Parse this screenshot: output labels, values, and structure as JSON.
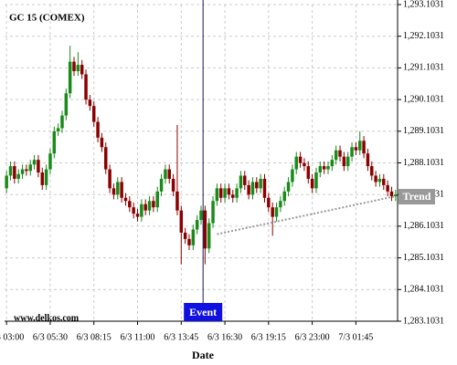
{
  "chart_data": {
    "type": "candlestick",
    "title": "GC 15 (COMEX)",
    "x_label": "Date",
    "watermark": "www.delkos.com",
    "up_color": "#1a8a1a",
    "down_color": "#8b0000",
    "grid": true,
    "ylim": [
      1283.1031,
      1293.1031
    ],
    "yticks": [
      {
        "value": 1283.1031,
        "label": "1,283.1031"
      },
      {
        "value": 1284.1031,
        "label": "1,284.1031"
      },
      {
        "value": 1285.1031,
        "label": "1,285.1031"
      },
      {
        "value": 1286.1031,
        "label": "1,286.1031"
      },
      {
        "value": 1287.1031,
        "label": "1,287.1031"
      },
      {
        "value": 1288.1031,
        "label": "1,288.1031"
      },
      {
        "value": 1289.1031,
        "label": "1,289.1031"
      },
      {
        "value": 1290.1031,
        "label": "1,290.1031"
      },
      {
        "value": 1291.1031,
        "label": "1,291.1031"
      },
      {
        "value": 1292.1031,
        "label": "1,292.1031"
      },
      {
        "value": 1293.1031,
        "label": "1,293.1031"
      }
    ],
    "categories": [
      "6/3 03:00",
      null,
      null,
      null,
      null,
      null,
      null,
      null,
      null,
      null,
      null,
      "6/3 05:30",
      null,
      null,
      null,
      null,
      null,
      null,
      null,
      null,
      null,
      null,
      "6/3 08:15",
      null,
      null,
      null,
      null,
      null,
      null,
      null,
      null,
      null,
      null,
      "6/3 11:00",
      null,
      null,
      null,
      null,
      null,
      null,
      null,
      null,
      null,
      null,
      "6/3 13:45",
      null,
      null,
      null,
      null,
      null,
      null,
      null,
      null,
      null,
      null,
      "6/3 16:30",
      null,
      null,
      null,
      null,
      null,
      null,
      null,
      null,
      null,
      null,
      "6/3 19:15",
      null,
      null,
      null,
      null,
      null,
      null,
      null,
      null,
      null,
      null,
      "6/3 23:00",
      null,
      null,
      null,
      null,
      null,
      null,
      null,
      null,
      null,
      null,
      "7/3 01:45",
      null,
      null,
      null,
      null,
      null,
      null,
      null,
      null,
      null,
      null
    ],
    "open": [
      1287.3,
      1287.7,
      1288.0,
      1287.6,
      1287.75,
      1287.9,
      1287.85,
      1288.05,
      1288.2,
      1287.8,
      1287.4,
      1287.9,
      1288.4,
      1289.1,
      1289.2,
      1289.6,
      1290.3,
      1291.3,
      1291.0,
      1291.2,
      1290.9,
      1290.1,
      1289.9,
      1289.4,
      1288.9,
      1288.6,
      1287.9,
      1287.3,
      1287.1,
      1287.5,
      1287.0,
      1286.9,
      1286.7,
      1286.5,
      1286.4,
      1286.8,
      1286.6,
      1286.9,
      1286.7,
      1287.2,
      1287.6,
      1287.9,
      1287.6,
      1287.2,
      1286.6,
      1285.9,
      1285.7,
      1285.5,
      1286.0,
      1286.3,
      1286.6,
      1285.4,
      1286.2,
      1286.9,
      1287.3,
      1287.0,
      1287.3,
      1287.1,
      1287.0,
      1287.3,
      1287.7,
      1287.4,
      1287.1,
      1287.5,
      1287.3,
      1287.6,
      1287.0,
      1286.7,
      1286.4,
      1286.7,
      1286.9,
      1287.2,
      1287.5,
      1287.9,
      1288.3,
      1288.1,
      1288.0,
      1287.6,
      1287.3,
      1287.8,
      1288.0,
      1287.9,
      1288.0,
      1288.2,
      1288.5,
      1288.3,
      1288.0,
      1288.3,
      1288.6,
      1288.5,
      1288.8,
      1288.4,
      1288.0,
      1287.7,
      1287.5,
      1287.6,
      1287.4,
      1287.2,
      1287.05
    ],
    "high": [
      1287.85,
      1288.15,
      1288.15,
      1287.9,
      1288.05,
      1288.05,
      1288.2,
      1288.35,
      1288.35,
      1287.95,
      1288.05,
      1288.55,
      1289.25,
      1289.35,
      1289.75,
      1290.45,
      1291.8,
      1291.45,
      1291.6,
      1291.35,
      1291.05,
      1290.25,
      1290.05,
      1289.55,
      1289.05,
      1288.75,
      1288.05,
      1287.45,
      1287.65,
      1287.65,
      1287.15,
      1287.05,
      1286.85,
      1286.65,
      1286.95,
      1286.95,
      1287.05,
      1287.05,
      1287.35,
      1287.75,
      1288.05,
      1288.05,
      1287.75,
      1289.3,
      1286.75,
      1286.05,
      1285.85,
      1286.15,
      1286.45,
      1286.75,
      1286.75,
      1286.35,
      1287.05,
      1287.45,
      1287.45,
      1287.45,
      1287.45,
      1287.25,
      1287.45,
      1287.85,
      1287.85,
      1287.55,
      1287.65,
      1287.65,
      1287.75,
      1287.75,
      1287.15,
      1286.85,
      1286.85,
      1287.05,
      1287.35,
      1287.65,
      1288.05,
      1288.45,
      1288.45,
      1288.25,
      1288.15,
      1287.75,
      1287.95,
      1288.15,
      1288.15,
      1288.15,
      1288.35,
      1288.65,
      1288.65,
      1288.45,
      1288.45,
      1288.75,
      1288.75,
      1289.1,
      1288.95,
      1288.55,
      1288.15,
      1287.85,
      1287.75,
      1287.75,
      1287.55,
      1287.35,
      1287.25
    ],
    "low": [
      1287.15,
      1287.55,
      1287.45,
      1287.45,
      1287.6,
      1287.7,
      1287.7,
      1287.9,
      1287.65,
      1287.25,
      1287.25,
      1287.75,
      1288.25,
      1288.95,
      1289.05,
      1289.45,
      1290.15,
      1290.85,
      1290.85,
      1290.75,
      1289.95,
      1289.75,
      1289.25,
      1288.75,
      1288.45,
      1287.75,
      1287.15,
      1286.95,
      1286.95,
      1286.85,
      1286.75,
      1286.55,
      1286.35,
      1286.25,
      1286.25,
      1286.45,
      1286.45,
      1286.55,
      1286.55,
      1287.05,
      1287.45,
      1287.45,
      1287.05,
      1286.45,
      1284.9,
      1285.55,
      1285.35,
      1285.35,
      1285.85,
      1286.15,
      1284.9,
      1285.25,
      1286.05,
      1286.75,
      1286.85,
      1286.85,
      1286.95,
      1286.85,
      1286.85,
      1287.15,
      1287.25,
      1286.95,
      1286.95,
      1287.15,
      1287.15,
      1286.85,
      1286.55,
      1285.8,
      1286.25,
      1286.55,
      1286.75,
      1287.05,
      1287.35,
      1287.75,
      1287.95,
      1287.85,
      1287.45,
      1287.15,
      1287.15,
      1287.65,
      1287.75,
      1287.75,
      1287.85,
      1288.05,
      1288.15,
      1287.85,
      1287.85,
      1288.15,
      1288.35,
      1288.35,
      1288.25,
      1287.85,
      1287.55,
      1287.35,
      1287.35,
      1287.25,
      1287.05,
      1286.9,
      1286.9
    ],
    "close": [
      1287.7,
      1288.0,
      1287.6,
      1287.75,
      1287.9,
      1287.85,
      1288.05,
      1288.2,
      1287.8,
      1287.4,
      1287.9,
      1288.4,
      1289.1,
      1289.2,
      1289.6,
      1290.3,
      1291.3,
      1291.0,
      1291.2,
      1290.9,
      1290.1,
      1289.9,
      1289.4,
      1288.9,
      1288.6,
      1287.9,
      1287.3,
      1287.1,
      1287.5,
      1287.0,
      1286.9,
      1286.7,
      1286.5,
      1286.4,
      1286.8,
      1286.6,
      1286.9,
      1286.7,
      1287.2,
      1287.6,
      1287.9,
      1287.6,
      1287.2,
      1286.6,
      1285.9,
      1285.7,
      1285.5,
      1286.0,
      1286.3,
      1286.6,
      1285.4,
      1286.2,
      1286.9,
      1287.3,
      1287.0,
      1287.3,
      1287.1,
      1287.0,
      1287.3,
      1287.7,
      1287.4,
      1287.1,
      1287.5,
      1287.3,
      1287.6,
      1287.0,
      1286.7,
      1286.4,
      1286.7,
      1286.9,
      1287.2,
      1287.5,
      1287.9,
      1288.3,
      1288.1,
      1288.0,
      1287.6,
      1287.3,
      1287.8,
      1288.0,
      1287.9,
      1288.0,
      1288.2,
      1288.5,
      1288.3,
      1288.0,
      1288.3,
      1288.6,
      1288.5,
      1288.8,
      1288.4,
      1288.0,
      1287.7,
      1287.5,
      1287.6,
      1287.4,
      1287.2,
      1287.05,
      1287.1
    ],
    "event": {
      "label": "Event",
      "index": 50,
      "color": "#1010e0"
    },
    "trend": {
      "label": "Trend",
      "start": [
        53,
        1285.85
      ],
      "end": [
        98,
        1287.05
      ],
      "color": "#999999"
    }
  }
}
